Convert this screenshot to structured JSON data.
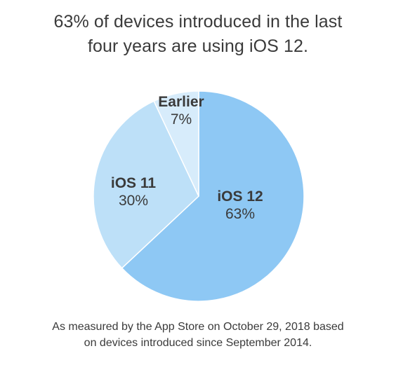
{
  "chart_data": {
    "type": "pie",
    "title_lines": [
      "63% of devices introduced in the last",
      "four years are using iOS 12."
    ],
    "slices": [
      {
        "name": "iOS 12",
        "value": 63,
        "label": "63%",
        "color": "#8ec8f4"
      },
      {
        "name": "iOS 11",
        "value": 30,
        "label": "30%",
        "color": "#bde0f8"
      },
      {
        "name": "Earlier",
        "value": 7,
        "label": "7%",
        "color": "#d7ecfb"
      }
    ],
    "label_color": "#3a3a3a",
    "separator_color": "#ffffff"
  },
  "footnote_lines": [
    "As measured by the App Store on October 29, 2018 based",
    "on devices introduced since September 2014."
  ]
}
